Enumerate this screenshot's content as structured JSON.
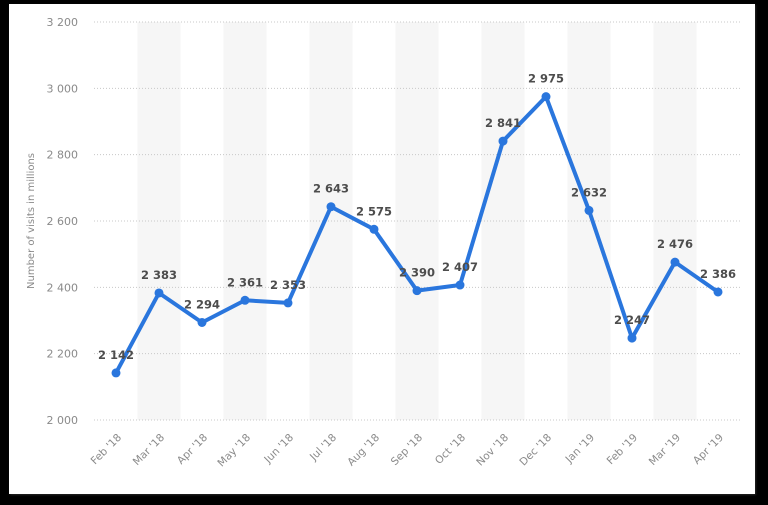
{
  "chart_data": {
    "type": "line",
    "title": "",
    "xlabel": "",
    "ylabel": "Number of visits in millions",
    "ylim": [
      2000,
      3200
    ],
    "yticks": [
      2000,
      2200,
      2400,
      2600,
      2800,
      3000,
      3200
    ],
    "ytick_labels": [
      "2 000",
      "2 200",
      "2 400",
      "2 600",
      "2 800",
      "3 000",
      "3 200"
    ],
    "grid": true,
    "legend": null,
    "categories": [
      "Feb '18",
      "Mar '18",
      "Apr '18",
      "May '18",
      "Jun '18",
      "Jul '18",
      "Aug '18",
      "Sep '18",
      "Oct '18",
      "Nov '18",
      "Dec '18",
      "Jan '19",
      "Feb '19",
      "Mar '19",
      "Apr '19"
    ],
    "series": [
      {
        "name": "Number of visits in millions",
        "color": "#2a76dd",
        "values": [
          2142,
          2383,
          2294,
          2361,
          2353,
          2643,
          2575,
          2390,
          2407,
          2841,
          2975,
          2632,
          2247,
          2476,
          2386
        ],
        "value_labels": [
          "2 142",
          "2 383",
          "2 294",
          "2 361",
          "2 353",
          "2 643",
          "2 575",
          "2 390",
          "2 407",
          "2 841",
          "2 975",
          "2 632",
          "2 247",
          "2 476",
          "2 386"
        ]
      }
    ]
  }
}
